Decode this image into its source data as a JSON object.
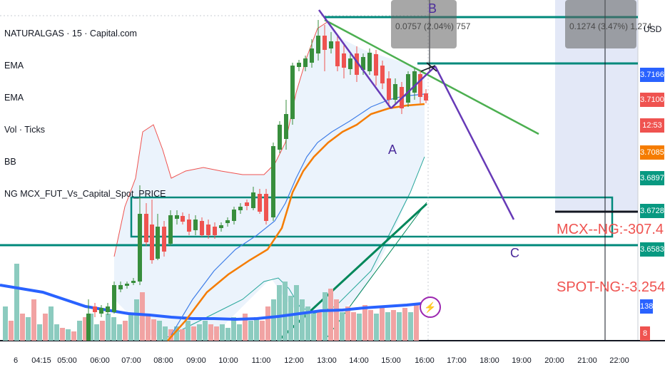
{
  "legend": {
    "symbol": "NATURALGAS · 15 · Capital.com",
    "ind1": "EMA",
    "ind2": "EMA",
    "ind3": "Vol · Ticks",
    "ind4": "BB",
    "ind5": "NG MCX_FUT_Vs_Capital_Spot_PRICE"
  },
  "currency": "USD",
  "measure_labels": [
    "0.0757 (2.04%) 757",
    "0.1274 (3.47%) 1,274"
  ],
  "price_tags": [
    {
      "text": "3.7166",
      "color": "#2962ff"
    },
    {
      "text": "3.7100",
      "color": "#ef5350"
    },
    {
      "text": "12:53",
      "color": "#ef5350"
    },
    {
      "text": "3.7085",
      "color": "#f57c00"
    },
    {
      "text": "3.6897",
      "color": "#089981"
    },
    {
      "text": "3.6728",
      "color": "#089981"
    },
    {
      "text": "3.6583",
      "color": "#089981"
    },
    {
      "text": "138",
      "color": "#2962ff"
    },
    {
      "text": "8",
      "color": "#ef5350"
    }
  ],
  "time_axis": [
    "6",
    "04:15",
    "05:00",
    "06:00",
    "07:00",
    "08:00",
    "09:00",
    "10:00",
    "11:00",
    "12:00",
    "13:00",
    "14:00",
    "15:00",
    "16:00",
    "17:00",
    "18:00",
    "19:00",
    "20:00",
    "21:00",
    "22:00"
  ],
  "annotations": {
    "mcx": "MCX--NG:-307.4",
    "spot": "SPOT-NG:-3.254"
  },
  "waves": {
    "a": "A",
    "b": "B",
    "c": "C"
  },
  "icons": {
    "flash": "flash-icon"
  },
  "colors": {
    "up": "#388e3c",
    "down": "#ef5350",
    "vol_up": "#8ccbbf",
    "vol_down": "#f1a3a3",
    "ema_fast": "#2962ff",
    "ema_slow": "#f57c00",
    "level_line": "#00897b",
    "trend_green": "#4caf50",
    "wave_line": "#673ab7"
  }
}
